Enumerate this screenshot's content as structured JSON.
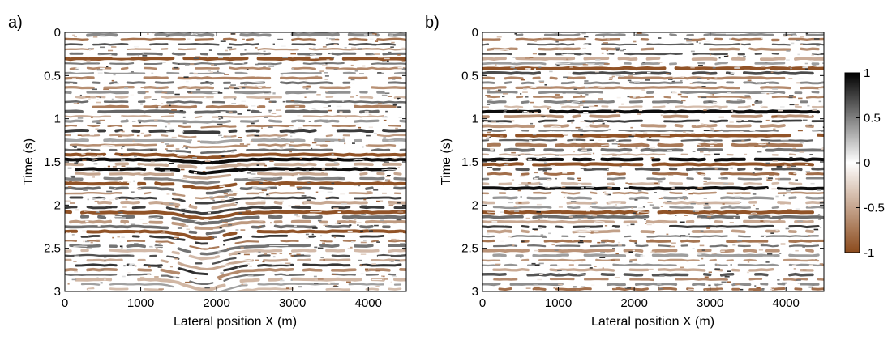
{
  "panels": [
    {
      "label": "a)",
      "xlabel": "Lateral position X (m)",
      "ylabel": "Time (s)",
      "xlim": [
        0,
        4500
      ],
      "ylim": [
        0,
        3
      ],
      "xticks": [
        "0",
        "1000",
        "2000",
        "3000",
        "4000"
      ],
      "yticks": [
        "0",
        "0.5",
        "1",
        "1.5",
        "2",
        "2.5",
        "3"
      ]
    },
    {
      "label": "b)",
      "xlabel": "Lateral position X (m)",
      "ylabel": "Time (s)",
      "xlim": [
        0,
        4500
      ],
      "ylim": [
        0,
        3
      ],
      "xticks": [
        "0",
        "1000",
        "2000",
        "3000",
        "4000"
      ],
      "yticks": [
        "0",
        "0.5",
        "1",
        "1.5",
        "2",
        "2.5",
        "3"
      ]
    }
  ],
  "colorbar": {
    "ticks": [
      "1",
      "0.5",
      "0",
      "-0.5",
      "-1"
    ],
    "range": [
      -1,
      1
    ],
    "colors": {
      "max": "#000000",
      "mid": "#ffffff",
      "min": "#8b4a1c"
    }
  },
  "chart_data": [
    {
      "type": "heatmap",
      "panel": "a)",
      "xlabel": "Lateral position X (m)",
      "ylabel": "Time (s)",
      "xlim": [
        0,
        4500
      ],
      "ylim": [
        0,
        3
      ],
      "value_range": [
        -1,
        1
      ],
      "strong_reflectors_s": [
        0.3,
        1.45,
        1.6,
        1.75,
        2.1,
        2.3
      ],
      "anomaly_x_m": 1850,
      "grid": false
    },
    {
      "type": "heatmap",
      "panel": "b)",
      "xlabel": "Lateral position X (m)",
      "ylabel": "Time (s)",
      "xlim": [
        0,
        4500
      ],
      "ylim": [
        0,
        3
      ],
      "value_range": [
        -1,
        1
      ],
      "strong_reflectors_s": [
        0.4,
        0.9,
        1.2,
        1.5,
        1.8,
        2.1
      ],
      "grid": false
    }
  ]
}
